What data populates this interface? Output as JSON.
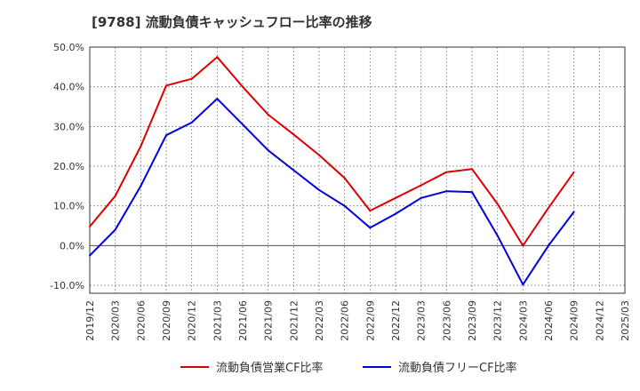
{
  "chart_data": {
    "type": "line",
    "title": "[9788]  流動負債キャッシュフロー比率の推移",
    "xlabel": "",
    "ylabel": "",
    "ylim": [
      -12,
      50
    ],
    "yticks": [
      {
        "value": 50,
        "label": "50.0%"
      },
      {
        "value": 40,
        "label": "40.0%"
      },
      {
        "value": 30,
        "label": "30.0%"
      },
      {
        "value": 20,
        "label": "20.0%"
      },
      {
        "value": 10,
        "label": "10.0%"
      },
      {
        "value": 0,
        "label": "0.0%"
      },
      {
        "value": -10,
        "label": "-10.0%"
      }
    ],
    "categories": [
      "2019/12",
      "2020/03",
      "2020/06",
      "2020/09",
      "2020/12",
      "2021/03",
      "2021/06",
      "2021/09",
      "2021/12",
      "2022/03",
      "2022/06",
      "2022/09",
      "2022/12",
      "2023/03",
      "2023/06",
      "2023/09",
      "2023/12",
      "2024/03",
      "2024/06",
      "2024/09",
      "2024/12",
      "2025/03"
    ],
    "series": [
      {
        "name": "流動負債営業CF比率",
        "color": "#dd0000",
        "values": [
          4.8,
          12.5,
          25.0,
          40.3,
          42.0,
          47.5,
          40.0,
          33.0,
          28.0,
          22.8,
          17.0,
          8.8,
          12.0,
          15.2,
          18.5,
          19.3,
          10.5,
          0.0,
          9.5,
          18.5,
          null,
          null
        ]
      },
      {
        "name": "流動負債フリーCF比率",
        "color": "#0000dd",
        "values": [
          -2.5,
          4.0,
          15.0,
          27.8,
          31.0,
          37.0,
          30.5,
          24.0,
          19.0,
          14.0,
          10.0,
          4.5,
          8.0,
          12.0,
          13.7,
          13.5,
          2.5,
          -9.8,
          0.0,
          8.5,
          null,
          null
        ]
      }
    ],
    "grid": true,
    "legend": "bottom"
  }
}
